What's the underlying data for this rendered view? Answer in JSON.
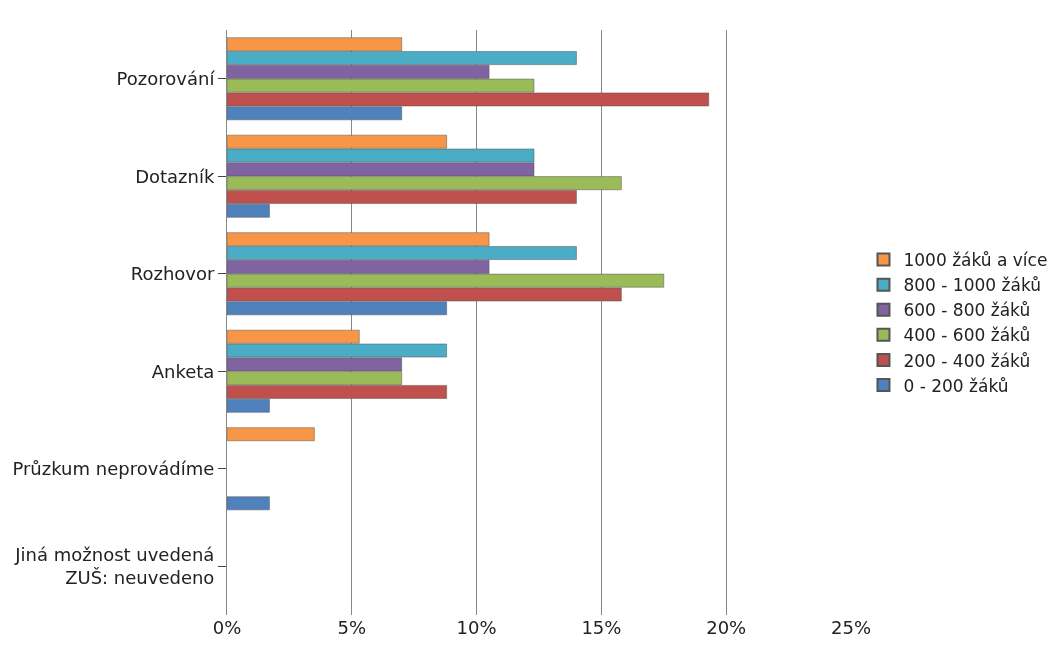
{
  "chart_data": {
    "type": "bar",
    "orientation": "horizontal",
    "categories": [
      "Pozorování",
      "Dotazník",
      "Rozhovor",
      "Anketa",
      "Průzkum neprovádíme",
      "Jiná možnost uvedená\nZUŠ: neuvedeno"
    ],
    "series": [
      {
        "name": "1000 žáků a více",
        "color": "#f79646",
        "values": [
          7.0,
          8.8,
          10.5,
          5.3,
          3.5,
          null
        ]
      },
      {
        "name": "800 - 1000 žáků",
        "color": "#4bacc6",
        "values": [
          14.0,
          12.3,
          14.0,
          8.8,
          null,
          null
        ]
      },
      {
        "name": "600 - 800 žáků",
        "color": "#8064a2",
        "values": [
          10.5,
          12.3,
          10.5,
          7.0,
          null,
          null
        ]
      },
      {
        "name": "400 - 600 žáků",
        "color": "#9bbb59",
        "values": [
          12.3,
          15.8,
          17.5,
          7.0,
          null,
          null
        ]
      },
      {
        "name": "200 - 400 žáků",
        "color": "#c0504d",
        "values": [
          19.3,
          14.0,
          15.8,
          8.8,
          null,
          null
        ]
      },
      {
        "name": "0 - 200 žáků",
        "color": "#4f81bd",
        "values": [
          7.0,
          1.7,
          8.8,
          1.7,
          1.7,
          null
        ]
      }
    ],
    "xlim": [
      0,
      25
    ],
    "xticks": [
      {
        "value": 0,
        "label": "0%"
      },
      {
        "value": 5,
        "label": "5%"
      },
      {
        "value": 10,
        "label": "10%"
      },
      {
        "value": 15,
        "label": "15%"
      },
      {
        "value": 20,
        "label": "20%"
      },
      {
        "value": 25,
        "label": "25%"
      }
    ],
    "grid": "x",
    "legend": "right"
  }
}
